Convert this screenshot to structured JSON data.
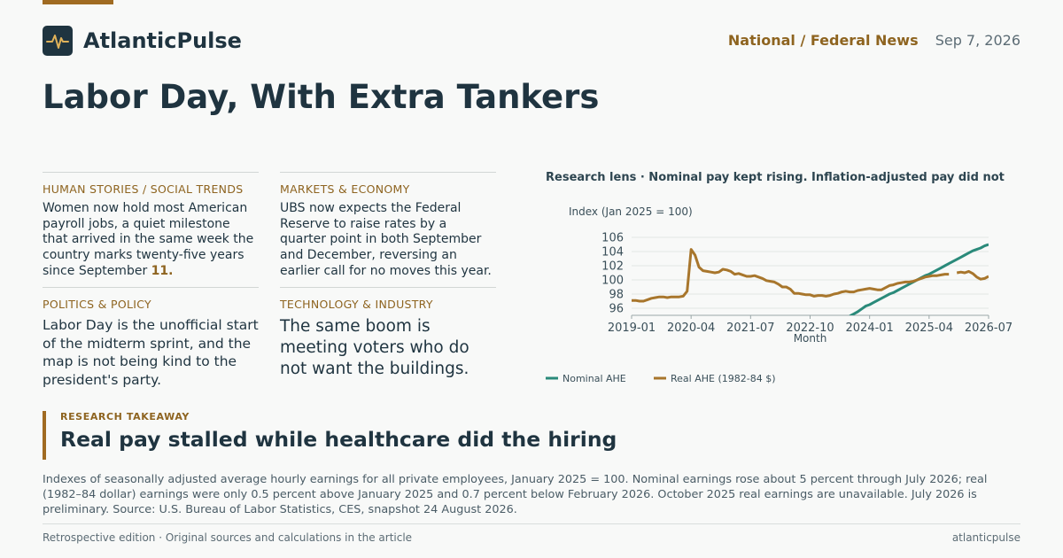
{
  "brand": {
    "name": "AtlanticPulse",
    "logo_icon": "pulse-icon",
    "accent_color": "#a06b22",
    "ink_color": "#1f3440"
  },
  "header": {
    "section": "National / Federal News",
    "date": "Sep 7, 2026"
  },
  "headline": "Labor Day, With Extra Tankers",
  "stories": [
    {
      "kicker": "HUMAN STORIES / SOCIAL TRENDS",
      "body": "Women now hold most American payroll jobs, a quiet milestone that arrived in the same week the country marks twenty-five years since September ",
      "highlight": "11."
    },
    {
      "kicker": "MARKETS & ECONOMY",
      "body": "UBS now expects the Federal Reserve to raise rates by a quarter point in both September and December, reversing an earlier call for no moves this year."
    },
    {
      "kicker": "POLITICS & POLICY",
      "body": "Labor Day is the unofficial start of the midterm sprint, and the map is not being kind to the president's party."
    },
    {
      "kicker": "TECHNOLOGY & INDUSTRY",
      "body": "The same boom is meeting voters who do not want the buildings."
    }
  ],
  "chart_title": "Research lens · Nominal pay kept rising. Inflation-adjusted pay did not",
  "chart_data": {
    "type": "line",
    "title": "Research lens · Nominal pay kept rising. Inflation-adjusted pay did not",
    "xlabel": "Month",
    "ylabel": "Index (Jan 2025 = 100)",
    "x_ticks": [
      "2019-01",
      "2020-04",
      "2021-07",
      "2022-10",
      "2024-01",
      "2025-04",
      "2026-07"
    ],
    "y_ticks": [
      96,
      98,
      100,
      102,
      104,
      106
    ],
    "ylim": [
      95,
      107
    ],
    "xlim": [
      "2019-01",
      "2026-07"
    ],
    "grid": "horizontal",
    "legend_position": "bottom-left",
    "series": [
      {
        "name": "Nominal AHE",
        "color": "#2a8a7a",
        "points": [
          [
            "2023-08",
            94.9
          ],
          [
            "2023-09",
            95.2
          ],
          [
            "2023-10",
            95.5
          ],
          [
            "2023-11",
            95.9
          ],
          [
            "2023-12",
            96.3
          ],
          [
            "2024-01",
            96.5
          ],
          [
            "2024-02",
            96.8
          ],
          [
            "2024-03",
            97.1
          ],
          [
            "2024-04",
            97.4
          ],
          [
            "2024-05",
            97.7
          ],
          [
            "2024-06",
            98.0
          ],
          [
            "2024-07",
            98.2
          ],
          [
            "2024-08",
            98.5
          ],
          [
            "2024-09",
            98.8
          ],
          [
            "2024-10",
            99.1
          ],
          [
            "2024-11",
            99.4
          ],
          [
            "2024-12",
            99.7
          ],
          [
            "2025-01",
            100.0
          ],
          [
            "2025-02",
            100.3
          ],
          [
            "2025-03",
            100.6
          ],
          [
            "2025-04",
            100.8
          ],
          [
            "2025-05",
            101.1
          ],
          [
            "2025-06",
            101.4
          ],
          [
            "2025-07",
            101.7
          ],
          [
            "2025-08",
            102.0
          ],
          [
            "2025-09",
            102.3
          ],
          [
            "2025-10",
            102.6
          ],
          [
            "2025-11",
            102.9
          ],
          [
            "2025-12",
            103.2
          ],
          [
            "2026-01",
            103.5
          ],
          [
            "2026-02",
            103.8
          ],
          [
            "2026-03",
            104.1
          ],
          [
            "2026-04",
            104.3
          ],
          [
            "2026-05",
            104.5
          ],
          [
            "2026-06",
            104.8
          ],
          [
            "2026-07",
            105.0
          ]
        ]
      },
      {
        "name": "Real AHE (1982-84 $)",
        "color": "#a8762c",
        "points": [
          [
            "2019-01",
            97.1
          ],
          [
            "2019-02",
            97.1
          ],
          [
            "2019-03",
            97.0
          ],
          [
            "2019-04",
            97.0
          ],
          [
            "2019-05",
            97.2
          ],
          [
            "2019-06",
            97.4
          ],
          [
            "2019-07",
            97.5
          ],
          [
            "2019-08",
            97.6
          ],
          [
            "2019-09",
            97.6
          ],
          [
            "2019-10",
            97.5
          ],
          [
            "2019-11",
            97.6
          ],
          [
            "2019-12",
            97.6
          ],
          [
            "2020-01",
            97.6
          ],
          [
            "2020-02",
            97.7
          ],
          [
            "2020-03",
            98.4
          ],
          [
            "2020-04",
            104.3
          ],
          [
            "2020-05",
            103.5
          ],
          [
            "2020-06",
            101.8
          ],
          [
            "2020-07",
            101.3
          ],
          [
            "2020-08",
            101.2
          ],
          [
            "2020-09",
            101.1
          ],
          [
            "2020-10",
            101.0
          ],
          [
            "2020-11",
            101.1
          ],
          [
            "2020-12",
            101.5
          ],
          [
            "2021-01",
            101.4
          ],
          [
            "2021-02",
            101.2
          ],
          [
            "2021-03",
            100.8
          ],
          [
            "2021-04",
            100.9
          ],
          [
            "2021-05",
            100.7
          ],
          [
            "2021-06",
            100.5
          ],
          [
            "2021-07",
            100.5
          ],
          [
            "2021-08",
            100.6
          ],
          [
            "2021-09",
            100.4
          ],
          [
            "2021-10",
            100.2
          ],
          [
            "2021-11",
            99.9
          ],
          [
            "2021-12",
            99.8
          ],
          [
            "2022-01",
            99.7
          ],
          [
            "2022-02",
            99.4
          ],
          [
            "2022-03",
            99.0
          ],
          [
            "2022-04",
            99.0
          ],
          [
            "2022-05",
            98.7
          ],
          [
            "2022-06",
            98.1
          ],
          [
            "2022-07",
            98.1
          ],
          [
            "2022-08",
            98.0
          ],
          [
            "2022-09",
            97.9
          ],
          [
            "2022-10",
            97.9
          ],
          [
            "2022-11",
            97.7
          ],
          [
            "2022-12",
            97.8
          ],
          [
            "2023-01",
            97.8
          ],
          [
            "2023-02",
            97.7
          ],
          [
            "2023-03",
            97.8
          ],
          [
            "2023-04",
            98.0
          ],
          [
            "2023-05",
            98.1
          ],
          [
            "2023-06",
            98.3
          ],
          [
            "2023-07",
            98.4
          ],
          [
            "2023-08",
            98.3
          ],
          [
            "2023-09",
            98.3
          ],
          [
            "2023-10",
            98.5
          ],
          [
            "2023-11",
            98.6
          ],
          [
            "2023-12",
            98.7
          ],
          [
            "2024-01",
            98.8
          ],
          [
            "2024-02",
            98.7
          ],
          [
            "2024-03",
            98.6
          ],
          [
            "2024-04",
            98.6
          ],
          [
            "2024-05",
            98.9
          ],
          [
            "2024-06",
            99.2
          ],
          [
            "2024-07",
            99.3
          ],
          [
            "2024-08",
            99.5
          ],
          [
            "2024-09",
            99.6
          ],
          [
            "2024-10",
            99.7
          ],
          [
            "2024-11",
            99.7
          ],
          [
            "2024-12",
            99.8
          ],
          [
            "2025-01",
            100.0
          ],
          [
            "2025-02",
            100.2
          ],
          [
            "2025-03",
            100.4
          ],
          [
            "2025-04",
            100.5
          ],
          [
            "2025-05",
            100.6
          ],
          [
            "2025-06",
            100.6
          ],
          [
            "2025-07",
            100.7
          ],
          [
            "2025-08",
            100.8
          ],
          [
            "2025-09",
            100.8
          ],
          [
            "2025-10",
            null
          ],
          [
            "2025-11",
            101.0
          ],
          [
            "2025-12",
            101.1
          ],
          [
            "2026-01",
            101.0
          ],
          [
            "2026-02",
            101.2
          ],
          [
            "2026-03",
            100.9
          ],
          [
            "2026-04",
            100.4
          ],
          [
            "2026-05",
            100.1
          ],
          [
            "2026-06",
            100.2
          ],
          [
            "2026-07",
            100.5
          ]
        ]
      }
    ]
  },
  "takeaway": {
    "label": "RESEARCH TAKEAWAY",
    "title": "Real pay stalled while healthcare did the hiring"
  },
  "caption": "Indexes of seasonally adjusted average hourly earnings for all private employees, January 2025 = 100. Nominal earnings rose about 5 percent through July 2026; real (1982–84 dollar) earnings were only 0.5 percent above January 2025 and 0.7 percent below February 2026. October 2025 real earnings are unavailable. July 2026 is preliminary. Source: U.S. Bureau of Labor Statistics, CES, snapshot 24 August 2026.",
  "footer": {
    "left": "Retrospective edition · Original sources and calculations in the article",
    "right": "atlanticpulse"
  }
}
